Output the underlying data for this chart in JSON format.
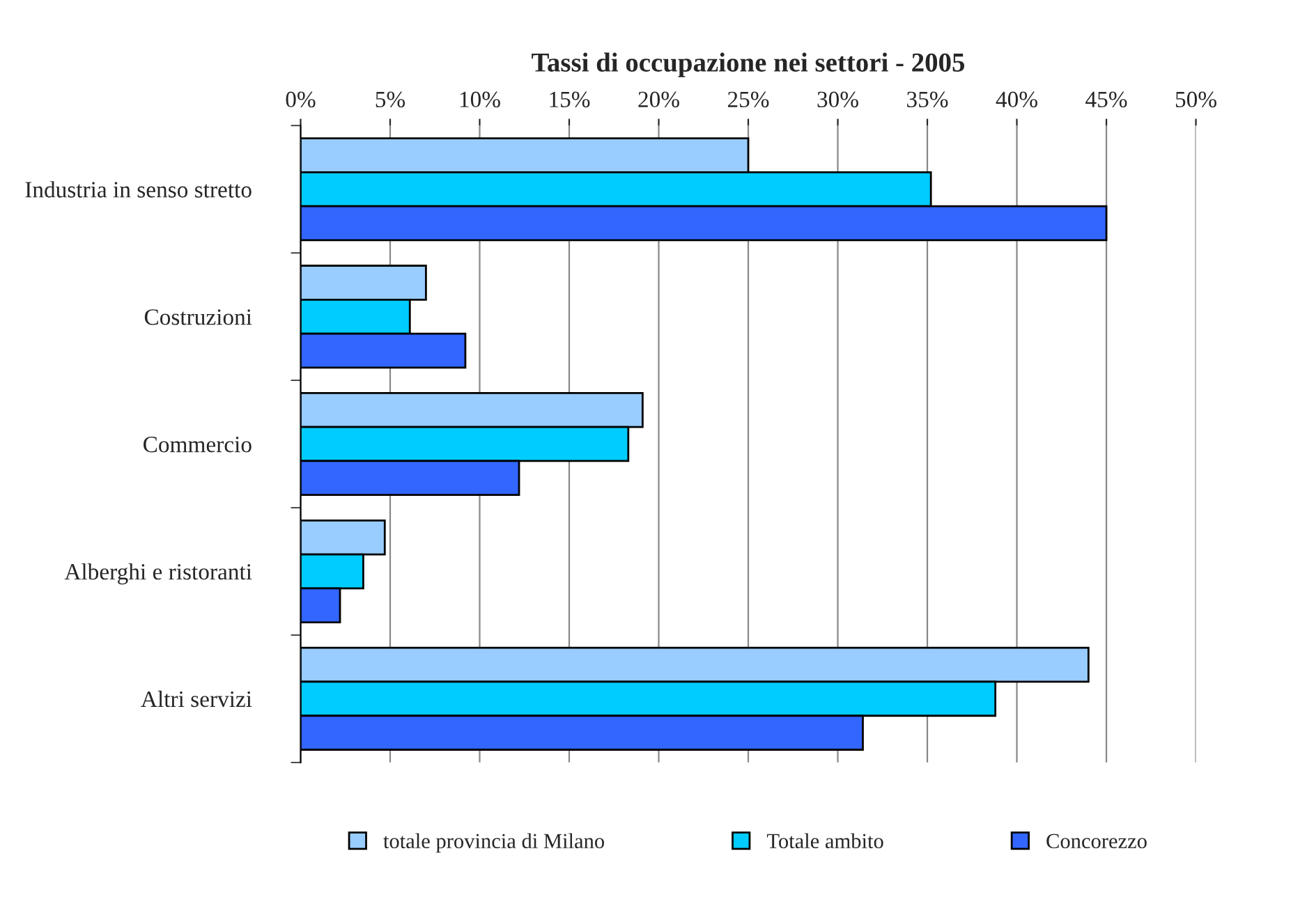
{
  "chart_data": {
    "type": "bar",
    "orientation": "horizontal",
    "title": "Tassi di occupazione nei settori - 2005",
    "categories": [
      "Industria in senso stretto",
      "Costruzioni",
      "Commercio",
      "Alberghi e ristoranti",
      "Altri servizi"
    ],
    "series": [
      {
        "name": "totale provincia di Milano",
        "color": "#99ccff",
        "values": [
          25.0,
          7.0,
          19.1,
          4.7,
          44.0
        ]
      },
      {
        "name": "Totale ambito",
        "color": "#00ccff",
        "values": [
          35.2,
          6.1,
          18.3,
          3.5,
          38.8
        ]
      },
      {
        "name": "Concorezzo",
        "color": "#3366ff",
        "values": [
          45.0,
          9.2,
          12.2,
          2.2,
          31.4
        ]
      }
    ],
    "xlim": [
      0,
      50
    ],
    "xticks": [
      {
        "value": 0,
        "label": "0%"
      },
      {
        "value": 5,
        "label": "5%"
      },
      {
        "value": 10,
        "label": "10%"
      },
      {
        "value": 15,
        "label": "15%"
      },
      {
        "value": 20,
        "label": "20%"
      },
      {
        "value": 25,
        "label": "25%"
      },
      {
        "value": 30,
        "label": "30%"
      },
      {
        "value": 35,
        "label": "35%"
      },
      {
        "value": 40,
        "label": "40%"
      },
      {
        "value": 45,
        "label": "45%"
      },
      {
        "value": 50,
        "label": "50%"
      }
    ],
    "grid": "x",
    "legend": "bottom"
  }
}
